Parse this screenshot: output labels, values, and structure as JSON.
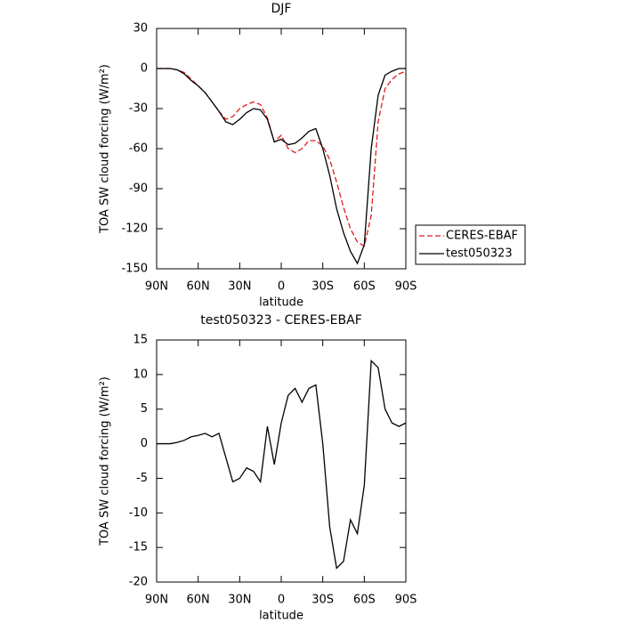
{
  "chart_data": [
    {
      "type": "line",
      "title": "DJF",
      "x_label": "latitude",
      "y_label": "TOA SW cloud forcing (W/m²)",
      "x": [
        90,
        85,
        80,
        75,
        70,
        65,
        60,
        55,
        50,
        45,
        40,
        35,
        30,
        25,
        20,
        15,
        10,
        5,
        0,
        -5,
        -10,
        -15,
        -20,
        -25,
        -30,
        -35,
        -40,
        -45,
        -50,
        -55,
        -60,
        -65,
        -70,
        -75,
        -80,
        -85,
        -90
      ],
      "series": [
        {
          "name": "CERES-EBAF",
          "color": "#e41a1c",
          "dash": true,
          "values": [
            0,
            0,
            0,
            -1,
            -3,
            -8,
            -13,
            -18,
            -25,
            -32,
            -38,
            -36,
            -30,
            -27,
            -25,
            -27,
            -37,
            -55,
            -50,
            -60,
            -63,
            -60,
            -54,
            -54,
            -58,
            -68,
            -85,
            -104,
            -120,
            -130,
            -133,
            -110,
            -40,
            -15,
            -8,
            -4,
            -2
          ]
        },
        {
          "name": "test050323",
          "color": "#000000",
          "dash": false,
          "values": [
            0,
            0,
            0,
            -1,
            -4,
            -9,
            -13,
            -18,
            -25,
            -32,
            -40,
            -42,
            -38,
            -33,
            -30,
            -31,
            -38,
            -55,
            -53,
            -57,
            -56,
            -52,
            -47,
            -45,
            -60,
            -80,
            -105,
            -123,
            -137,
            -146,
            -132,
            -60,
            -20,
            -5,
            -2,
            0,
            0
          ]
        }
      ],
      "xlim": [
        90,
        -90
      ],
      "xticks": [
        {
          "value": 90,
          "label": "90N"
        },
        {
          "value": 60,
          "label": "60N"
        },
        {
          "value": 30,
          "label": "30N"
        },
        0,
        {
          "value": -30,
          "label": "30S"
        },
        {
          "value": -60,
          "label": "60S"
        },
        {
          "value": -90,
          "label": "90S"
        }
      ],
      "ylim": [
        -150,
        30
      ],
      "yticks": [
        30,
        0,
        -30,
        -60,
        -90,
        -120,
        -150
      ],
      "legend": "right"
    },
    {
      "type": "line",
      "title": "test050323 - CERES-EBAF",
      "x_label": "latitude",
      "y_label": "TOA SW cloud forcing (W/m²)",
      "x": [
        90,
        85,
        80,
        75,
        70,
        65,
        60,
        55,
        50,
        45,
        40,
        35,
        30,
        25,
        20,
        15,
        10,
        5,
        0,
        -5,
        -10,
        -15,
        -20,
        -25,
        -30,
        -35,
        -40,
        -45,
        -50,
        -55,
        -60,
        -65,
        -70,
        -75,
        -80,
        -85,
        -90
      ],
      "series": [
        {
          "name": "test050323 - CERES-EBAF",
          "color": "#000000",
          "dash": false,
          "values": [
            0,
            0,
            0,
            0.2,
            0.5,
            1,
            1.2,
            1.5,
            1,
            1.5,
            -2,
            -5.5,
            -5,
            -3.5,
            -4,
            -5.5,
            2.5,
            -3,
            3,
            7,
            8,
            6,
            8,
            8.5,
            0,
            -12,
            -18,
            -17,
            -11,
            -13,
            -6,
            12,
            11,
            5,
            3,
            2.5,
            3
          ]
        }
      ],
      "xlim": [
        90,
        -90
      ],
      "xticks": [
        {
          "value": 90,
          "label": "90N"
        },
        {
          "value": 60,
          "label": "60N"
        },
        {
          "value": 30,
          "label": "30N"
        },
        0,
        {
          "value": -30,
          "label": "30S"
        },
        {
          "value": -60,
          "label": "60S"
        },
        {
          "value": -90,
          "label": "90S"
        }
      ],
      "ylim": [
        -20,
        15
      ],
      "yticks": [
        15,
        10,
        5,
        0,
        -5,
        -10,
        -15,
        -20
      ]
    }
  ]
}
